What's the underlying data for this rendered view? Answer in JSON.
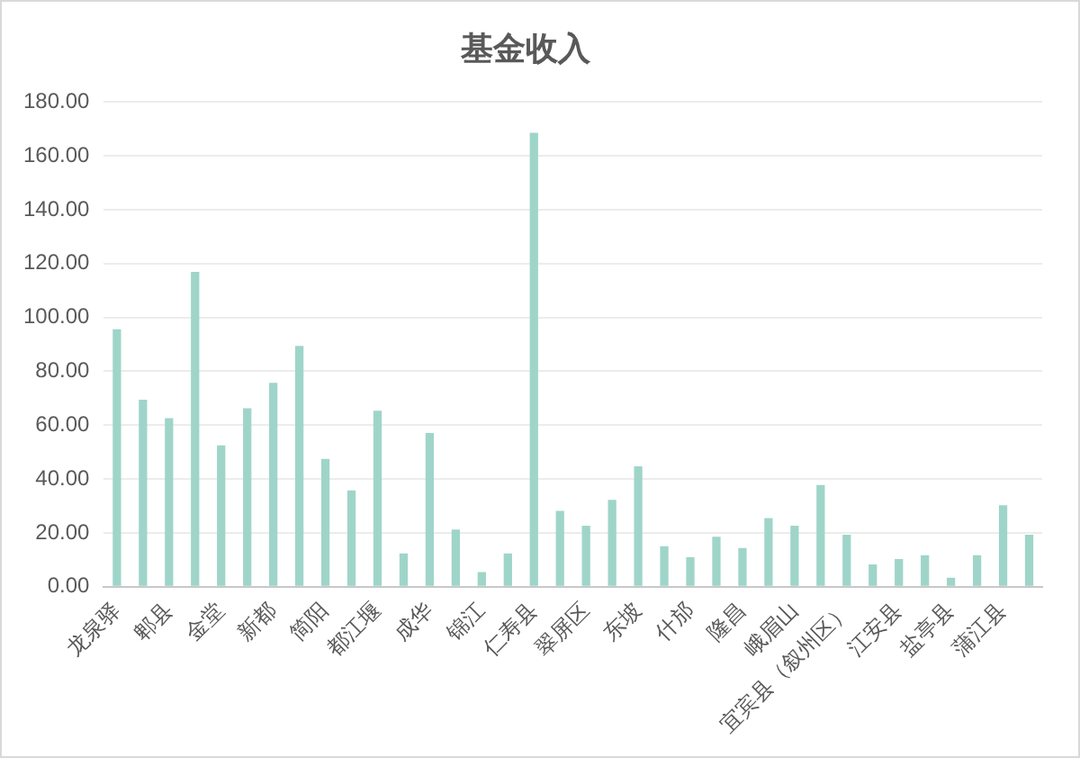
{
  "chart_data": {
    "type": "bar",
    "title": "基金收入",
    "categories": [
      "龙泉驿",
      null,
      "郫县",
      null,
      "金堂",
      null,
      "新都",
      null,
      "简阳",
      null,
      "都江堰",
      null,
      "成华",
      null,
      "锦江",
      null,
      "仁寿县",
      null,
      "翠屏区",
      null,
      "东坡",
      null,
      "什邡",
      null,
      "隆昌",
      null,
      "峨眉山",
      null,
      "宜宾县（叙州区）",
      null,
      "江安县",
      null,
      "盐亭县",
      null,
      "蒲江县",
      null
    ],
    "values": [
      95.6,
      69.5,
      62.6,
      116.9,
      52.5,
      66.3,
      75.7,
      89.4,
      47.5,
      35.8,
      65.4,
      12.4,
      57.1,
      21.3,
      5.5,
      12.4,
      168.5,
      28.2,
      22.7,
      32.3,
      44.7,
      15.1,
      11.0,
      18.6,
      14.4,
      25.5,
      22.7,
      37.8,
      19.3,
      8.3,
      10.3,
      11.7,
      3.4,
      11.7,
      30.3,
      19.3
    ],
    "color": "#9fd5c9",
    "ylim": [
      0,
      180
    ],
    "yticks": [
      {
        "value": 0,
        "label": "0.00"
      },
      {
        "value": 20,
        "label": "20.00"
      },
      {
        "value": 40,
        "label": "40.00"
      },
      {
        "value": 60,
        "label": "60.00"
      },
      {
        "value": 80,
        "label": "80.00"
      },
      {
        "value": 100,
        "label": "100.00"
      },
      {
        "value": 120,
        "label": "120.00"
      },
      {
        "value": 140,
        "label": "140.00"
      },
      {
        "value": 160,
        "label": "160.00"
      },
      {
        "value": 180,
        "label": "180.00"
      }
    ],
    "grid": "y"
  }
}
